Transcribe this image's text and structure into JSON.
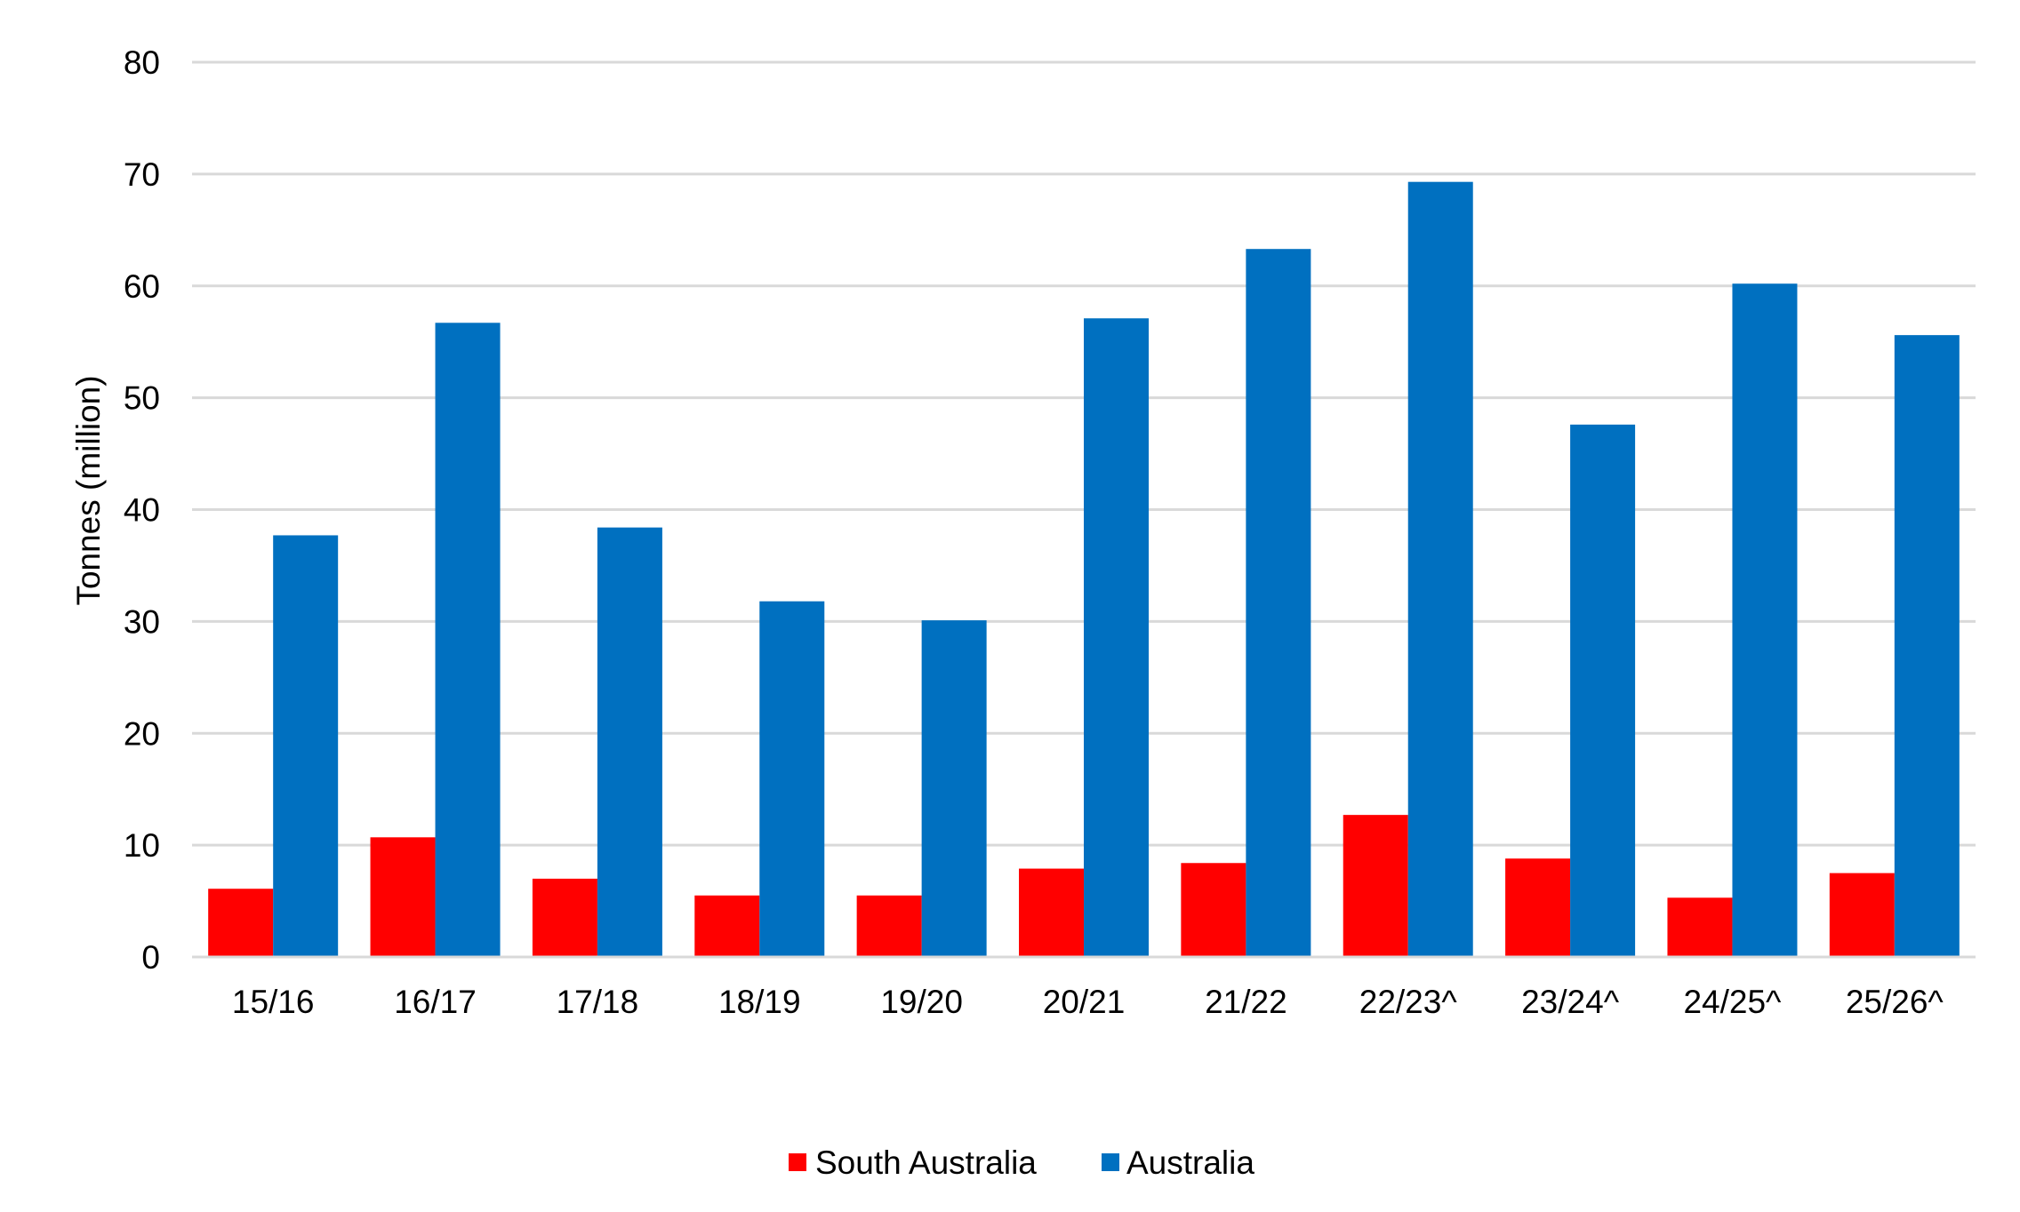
{
  "chart_data": {
    "type": "bar",
    "title": "",
    "xlabel": "",
    "ylabel": "Tonnes (million)",
    "ylim": [
      0,
      80
    ],
    "yticks": [
      0,
      10,
      20,
      30,
      40,
      50,
      60,
      70,
      80
    ],
    "grid": true,
    "legend_position": "bottom-center",
    "categories": [
      "15/16",
      "16/17",
      "17/18",
      "18/19",
      "19/20",
      "20/21",
      "21/22",
      "22/23^",
      "23/24^",
      "24/25^",
      "25/26^"
    ],
    "series": [
      {
        "name": "South Australia",
        "color": "#ff0000",
        "values": [
          6.1,
          10.7,
          7.0,
          5.5,
          5.5,
          7.9,
          8.4,
          12.7,
          8.8,
          5.3,
          7.5
        ]
      },
      {
        "name": "Australia",
        "color": "#0070c0",
        "values": [
          37.7,
          56.7,
          38.4,
          31.8,
          30.1,
          57.1,
          63.3,
          69.3,
          47.6,
          60.2,
          55.6
        ]
      }
    ]
  }
}
